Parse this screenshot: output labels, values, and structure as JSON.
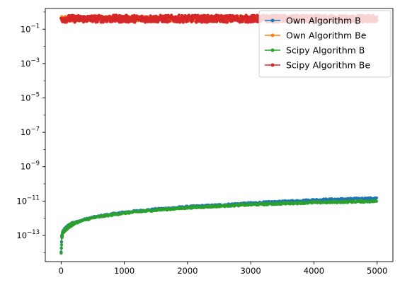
{
  "chart_data": {
    "type": "line",
    "title": "",
    "xlabel": "",
    "ylabel": "",
    "xlim": [
      -250,
      5250
    ],
    "ylim": [
      3e-15,
      1.6
    ],
    "yscale": "log",
    "grid": false,
    "legend_placement": "top-right",
    "x_ticks": [
      0,
      1000,
      2000,
      3000,
      4000,
      5000
    ],
    "x_tick_labels": [
      "0",
      "1000",
      "2000",
      "3000",
      "4000",
      "5000"
    ],
    "y_ticks": [
      1e-13,
      1e-11,
      1e-09,
      1e-07,
      1e-05,
      0.001,
      0.1
    ],
    "y_tick_labels": [
      {
        "base": "10",
        "exp": "−13"
      },
      {
        "base": "10",
        "exp": "−11"
      },
      {
        "base": "10",
        "exp": "−9"
      },
      {
        "base": "10",
        "exp": "−7"
      },
      {
        "base": "10",
        "exp": "−5"
      },
      {
        "base": "10",
        "exp": "−3"
      },
      {
        "base": "10",
        "exp": "−1"
      }
    ],
    "series": [
      {
        "name": "Own Algorithm B",
        "color": "#1f77b4",
        "x": [
          1,
          10,
          30,
          60,
          100,
          150,
          200,
          300,
          400,
          500,
          700,
          1000,
          1500,
          2000,
          2500,
          3000,
          3500,
          4000,
          4500,
          5000
        ],
        "values": [
          1e-14,
          8e-14,
          1.6e-13,
          2.3e-13,
          3e-13,
          4.2e-13,
          5.2e-13,
          7e-13,
          9e-13,
          1.1e-12,
          1.5e-12,
          2.2e-12,
          3.3e-12,
          4.6e-12,
          5.8e-12,
          7.5e-12,
          9.2e-12,
          1.15e-11,
          1.3e-11,
          1.45e-11
        ]
      },
      {
        "name": "Own Algorithm Be",
        "color": "#ff7f0e",
        "x": [
          0,
          500,
          1000,
          1500,
          2000,
          2500,
          3000,
          3500,
          4000,
          4500,
          5000
        ],
        "values": [
          0.4,
          0.42,
          0.41,
          0.43,
          0.4,
          0.42,
          0.41,
          0.43,
          0.42,
          0.41,
          0.42
        ]
      },
      {
        "name": "Scipy Algorithm B",
        "color": "#2ca02c",
        "x": [
          1,
          10,
          30,
          60,
          100,
          150,
          200,
          300,
          400,
          500,
          700,
          1000,
          1500,
          2000,
          2500,
          3000,
          3500,
          4000,
          4500,
          5000
        ],
        "values": [
          8e-15,
          7e-14,
          1.5e-13,
          2.1e-13,
          2.8e-13,
          4e-13,
          5e-13,
          6.6e-13,
          8.5e-13,
          1.05e-12,
          1.4e-12,
          2e-12,
          3e-12,
          4.1e-12,
          5.1e-12,
          6.2e-12,
          7.2e-12,
          8.2e-12,
          9e-12,
          9.8e-12
        ]
      },
      {
        "name": "Scipy Algorithm Be",
        "color": "#d62728",
        "x": [
          0,
          500,
          1000,
          1500,
          2000,
          2500,
          3000,
          3500,
          4000,
          4500,
          5000
        ],
        "values": [
          0.41,
          0.43,
          0.42,
          0.41,
          0.43,
          0.42,
          0.42,
          0.41,
          0.43,
          0.42,
          0.41
        ],
        "noise_band": [
          0.25,
          0.65
        ]
      }
    ]
  }
}
